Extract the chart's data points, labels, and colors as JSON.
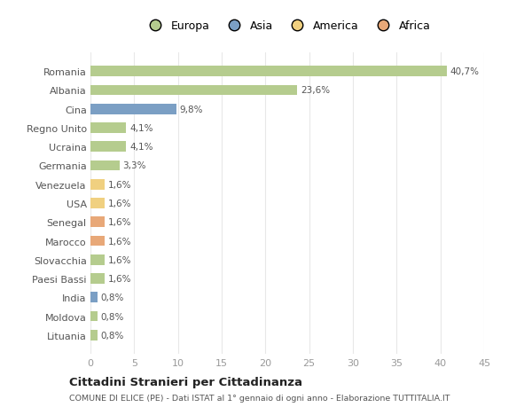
{
  "categories": [
    "Romania",
    "Albania",
    "Cina",
    "Regno Unito",
    "Ucraina",
    "Germania",
    "Venezuela",
    "USA",
    "Senegal",
    "Marocco",
    "Slovacchia",
    "Paesi Bassi",
    "India",
    "Moldova",
    "Lituania"
  ],
  "values": [
    40.7,
    23.6,
    9.8,
    4.1,
    4.1,
    3.3,
    1.6,
    1.6,
    1.6,
    1.6,
    1.6,
    1.6,
    0.8,
    0.8,
    0.8
  ],
  "labels": [
    "40,7%",
    "23,6%",
    "9,8%",
    "4,1%",
    "4,1%",
    "3,3%",
    "1,6%",
    "1,6%",
    "1,6%",
    "1,6%",
    "1,6%",
    "1,6%",
    "0,8%",
    "0,8%",
    "0,8%"
  ],
  "colors": [
    "#b5cc8e",
    "#b5cc8e",
    "#7b9fc4",
    "#b5cc8e",
    "#b5cc8e",
    "#b5cc8e",
    "#f0d080",
    "#f0d080",
    "#e8a878",
    "#e8a878",
    "#b5cc8e",
    "#b5cc8e",
    "#7b9fc4",
    "#b5cc8e",
    "#b5cc8e"
  ],
  "legend": [
    {
      "label": "Europa",
      "color": "#b5cc8e"
    },
    {
      "label": "Asia",
      "color": "#7b9fc4"
    },
    {
      "label": "America",
      "color": "#f0d080"
    },
    {
      "label": "Africa",
      "color": "#e8a878"
    }
  ],
  "xlim": [
    0,
    45
  ],
  "xticks": [
    0,
    5,
    10,
    15,
    20,
    25,
    30,
    35,
    40,
    45
  ],
  "title": "Cittadini Stranieri per Cittadinanza",
  "subtitle": "COMUNE DI ELICE (PE) - Dati ISTAT al 1° gennaio di ogni anno - Elaborazione TUTTITALIA.IT",
  "background_color": "#ffffff",
  "plot_bg_color": "#ffffff",
  "grid_color": "#e8e8e8",
  "bar_height": 0.55
}
